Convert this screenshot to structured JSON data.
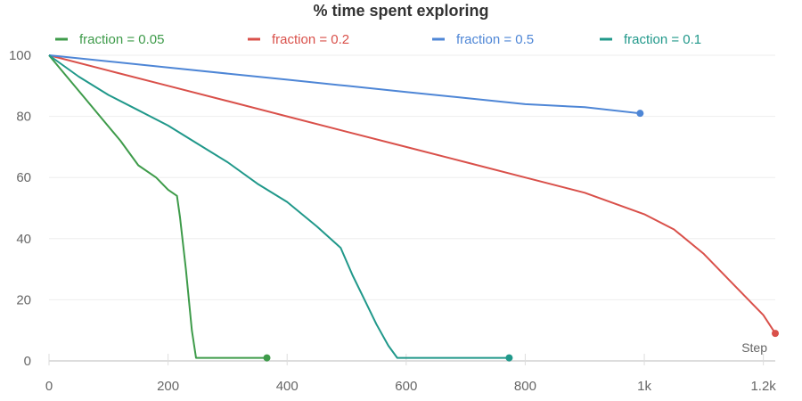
{
  "chart_data": {
    "type": "line",
    "title": "% time spent exploring",
    "xlabel": "Step",
    "ylabel": "",
    "xlim": [
      0,
      1220
    ],
    "ylim": [
      0,
      100
    ],
    "x_ticks": [
      0,
      200,
      400,
      600,
      800,
      1000,
      1200
    ],
    "x_tick_labels": [
      "0",
      "200",
      "400",
      "600",
      "800",
      "1k",
      "1.2k"
    ],
    "y_ticks": [
      0,
      20,
      40,
      60,
      80,
      100
    ],
    "y_tick_labels": [
      "0",
      "20",
      "40",
      "60",
      "80",
      "100"
    ],
    "legend_position": "top",
    "series": [
      {
        "name": "fraction = 0.05",
        "color": "#3e9b4a",
        "x": [
          0,
          30,
          60,
          90,
          120,
          150,
          180,
          200,
          215,
          220,
          230,
          240,
          247,
          260,
          300,
          366
        ],
        "y": [
          100,
          93,
          86,
          79,
          72,
          64,
          60,
          56,
          54,
          47,
          30,
          10,
          1,
          1,
          1,
          1
        ]
      },
      {
        "name": "fraction = 0.2",
        "color": "#d9504a",
        "x": [
          0,
          100,
          200,
          300,
          400,
          500,
          600,
          700,
          800,
          900,
          1000,
          1050,
          1100,
          1150,
          1200,
          1220
        ],
        "y": [
          100,
          95,
          90,
          85,
          80,
          75,
          70,
          65,
          60,
          55,
          48,
          43,
          35,
          25,
          15,
          9
        ]
      },
      {
        "name": "fraction = 0.5",
        "color": "#4e86d6",
        "x": [
          0,
          100,
          200,
          300,
          400,
          500,
          600,
          700,
          800,
          900,
          993
        ],
        "y": [
          100,
          98,
          96,
          94,
          92,
          90,
          88,
          86,
          84,
          83,
          81
        ]
      },
      {
        "name": "fraction = 0.1",
        "color": "#20988a",
        "x": [
          0,
          50,
          100,
          150,
          200,
          250,
          300,
          350,
          400,
          450,
          490,
          510,
          530,
          550,
          570,
          585,
          600,
          700,
          773
        ],
        "y": [
          100,
          93,
          87,
          82,
          77,
          71,
          65,
          58,
          52,
          44,
          37,
          28,
          20,
          12,
          5,
          1,
          1,
          1,
          1
        ]
      }
    ]
  }
}
